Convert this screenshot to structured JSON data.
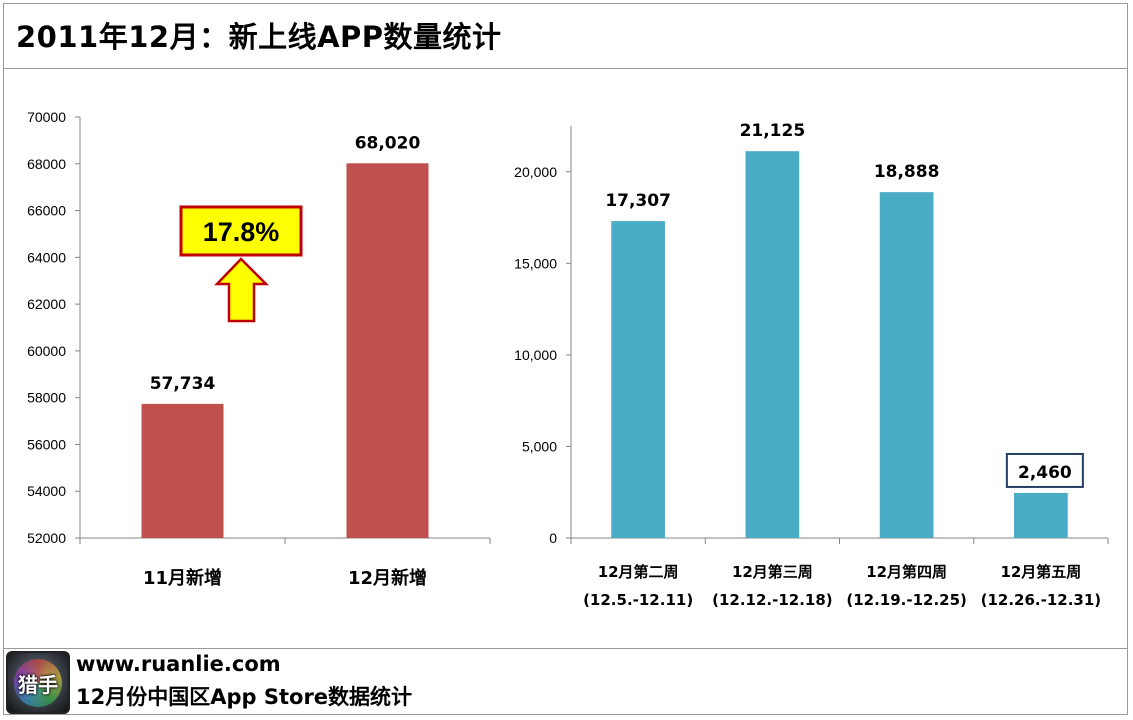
{
  "title": "2011年12月：新上线APP数量统计",
  "footer": {
    "logo_text": "猎手",
    "url": "www.ruanlie.com",
    "caption": "12月份中国区App  Store数据统计"
  },
  "annotation": {
    "percent_label": "17.8%",
    "box_color": "#ffff00",
    "border_color": "#c00000",
    "arrow_color": "#ffff00"
  },
  "chart_data": [
    {
      "type": "bar",
      "title": "",
      "categories": [
        "11月新增",
        "12月新增"
      ],
      "values": [
        57734,
        68020
      ],
      "value_labels": [
        "57,734",
        "68,020"
      ],
      "ylim": [
        52000,
        70000
      ],
      "yticks": [
        52000,
        54000,
        56000,
        58000,
        60000,
        62000,
        64000,
        66000,
        68000,
        70000
      ],
      "ytick_labels": [
        "52000",
        "54000",
        "56000",
        "58000",
        "60000",
        "62000",
        "64000",
        "66000",
        "68000",
        "70000"
      ],
      "color": "#c0504d",
      "xlabel": "",
      "ylabel": "",
      "grid": false
    },
    {
      "type": "bar",
      "title": "",
      "categories": [
        "12月第二周",
        "12月第三周",
        "12月第四周",
        "12月第五周"
      ],
      "category_sublabels": [
        "(12.5.-12.11)",
        "(12.12.-12.18)",
        "(12.19.-12.25)",
        "(12.26.-12.31)"
      ],
      "values": [
        17307,
        21125,
        18888,
        2460
      ],
      "value_labels": [
        "17,307",
        "21,125",
        "18,888",
        "2,460"
      ],
      "boxed_label_index": 3,
      "ylim": [
        0,
        22500
      ],
      "yticks": [
        0,
        5000,
        10000,
        15000,
        20000
      ],
      "ytick_labels": [
        "0",
        "5,000",
        "10,000",
        "15,000",
        "20,000"
      ],
      "color": "#4bacc6",
      "xlabel": "",
      "ylabel": "",
      "grid": false
    }
  ]
}
